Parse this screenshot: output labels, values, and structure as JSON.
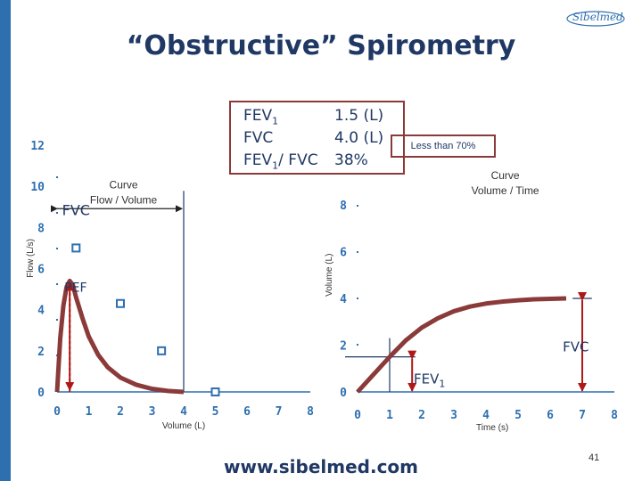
{
  "slide": {
    "title": "“Obstructive” Spirometry",
    "logo_text": "Sibelmed",
    "url": "www.sibelmed.com",
    "page_number": "41",
    "accent_color": "#2e6fb0",
    "curve_color": "#8b3a3a"
  },
  "stats": {
    "rows": [
      {
        "label_main": "FEV",
        "label_sub": "1",
        "label_rest": "",
        "value": "1.5 (L)"
      },
      {
        "label_main": "FVC",
        "label_sub": "",
        "label_rest": "",
        "value": "4.0 (L)"
      },
      {
        "label_main": "FEV",
        "label_sub": "1",
        "label_rest": "/ FVC",
        "value": "38%"
      }
    ],
    "threshold_note": "Less than 70%"
  },
  "chart_data": [
    {
      "type": "line",
      "title": "Curve\nFlow / Volume",
      "xlabel": "Volume (L)",
      "ylabel": "Flow (L/s)",
      "xlim": [
        0,
        8
      ],
      "ylim": [
        0,
        12
      ],
      "x_ticks": [
        "0",
        "1",
        "2",
        "3",
        "4",
        "5",
        "6",
        "7",
        "8"
      ],
      "y_ticks": [
        "0",
        "2",
        "4",
        "6",
        "8",
        "10",
        "12"
      ],
      "series": [
        {
          "values_xy": [
            [
              0.0,
              0.0
            ],
            [
              0.1,
              2.6
            ],
            [
              0.2,
              4.2
            ],
            [
              0.3,
              5.1
            ],
            [
              0.4,
              5.4
            ],
            [
              0.5,
              5.2
            ],
            [
              0.6,
              4.6
            ],
            [
              0.8,
              3.6
            ],
            [
              1.0,
              2.7
            ],
            [
              1.3,
              1.8
            ],
            [
              1.6,
              1.2
            ],
            [
              2.0,
              0.7
            ],
            [
              2.5,
              0.35
            ],
            [
              3.0,
              0.15
            ],
            [
              3.5,
              0.05
            ],
            [
              4.0,
              0.0
            ]
          ]
        }
      ],
      "markers": [
        [
          0.6,
          7.0
        ],
        [
          2.0,
          4.3
        ],
        [
          3.3,
          2.0
        ],
        [
          5.0,
          0.0
        ]
      ],
      "annotations": {
        "fvc_label": "FVC",
        "pef_label": "PEF",
        "fvc_arrow_y": 9.0,
        "fvc_end_x": 4.0,
        "pef_x": 0.4,
        "pef_y": 5.4
      }
    },
    {
      "type": "line",
      "title": "Curve\nVolume / Time",
      "xlabel": "Time (s)",
      "ylabel": "Volume (L)",
      "xlim": [
        0,
        8
      ],
      "ylim": [
        0,
        8
      ],
      "x_ticks": [
        "0",
        "1",
        "2",
        "3",
        "4",
        "5",
        "6",
        "7",
        "8"
      ],
      "y_ticks": [
        "0",
        "2",
        "4",
        "6",
        "8"
      ],
      "series": [
        {
          "values_xy": [
            [
              0.0,
              0.0
            ],
            [
              0.5,
              0.75
            ],
            [
              1.0,
              1.5
            ],
            [
              1.5,
              2.2
            ],
            [
              2.0,
              2.75
            ],
            [
              2.5,
              3.15
            ],
            [
              3.0,
              3.45
            ],
            [
              3.5,
              3.65
            ],
            [
              4.0,
              3.78
            ],
            [
              4.5,
              3.86
            ],
            [
              5.0,
              3.92
            ],
            [
              5.5,
              3.96
            ],
            [
              6.0,
              3.98
            ],
            [
              6.5,
              4.0
            ]
          ]
        }
      ],
      "annotations": {
        "fev1_label_main": "FEV",
        "fev1_label_sub": "1",
        "fvc_label": "FVC",
        "fev1_x": 1.0,
        "fev1_y": 1.5,
        "fvc_x": 7.0,
        "fvc_y": 4.0
      }
    }
  ]
}
